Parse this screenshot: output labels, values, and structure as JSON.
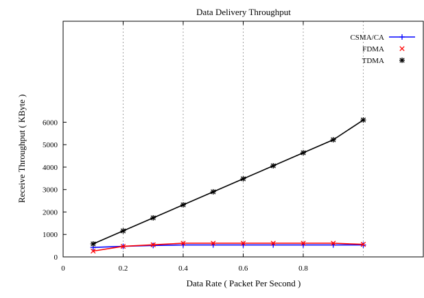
{
  "chart_data": {
    "type": "line",
    "title": "Data Delivery Throughput",
    "xlabel": "Data Rate ( Packet Per Second )",
    "ylabel": "Receive Throughput ( KByte )",
    "xlim": [
      0,
      1.2
    ],
    "ylim": [
      0,
      10500
    ],
    "xticks": [
      0,
      0.2,
      0.4,
      0.6,
      0.8
    ],
    "xtick_labels": [
      "0",
      "0.2",
      "0.4",
      "0.6",
      "0.8"
    ],
    "yticks": [
      0,
      1000,
      2000,
      3000,
      4000,
      5000,
      6000
    ],
    "ytick_labels": [
      "0",
      "1000",
      "2000",
      "3000",
      "4000",
      "5000",
      "6000"
    ],
    "grid": "x-dotted",
    "legend": "top-right",
    "series": [
      {
        "name": "CSMA/CA",
        "color": "#0000ff",
        "marker": "plus",
        "x": [
          0.1,
          0.2,
          0.3,
          0.4,
          0.5,
          0.6,
          0.7,
          0.8,
          0.9,
          1.0
        ],
        "values": [
          420,
          470,
          510,
          530,
          530,
          530,
          530,
          530,
          530,
          530
        ]
      },
      {
        "name": "FDMA",
        "color": "#ff0000",
        "marker": "cross",
        "x": [
          0.1,
          0.2,
          0.3,
          0.4,
          0.5,
          0.6,
          0.7,
          0.8,
          0.9,
          1.0
        ],
        "values": [
          260,
          470,
          540,
          610,
          610,
          610,
          610,
          610,
          610,
          560
        ]
      },
      {
        "name": "TDMA",
        "color": "#000000",
        "marker": "star",
        "x": [
          0.1,
          0.2,
          0.3,
          0.4,
          0.5,
          0.6,
          0.7,
          0.8,
          0.9,
          1.0
        ],
        "values": [
          580,
          1160,
          1740,
          2320,
          2900,
          3480,
          4060,
          4640,
          5220,
          6100
        ]
      }
    ]
  }
}
